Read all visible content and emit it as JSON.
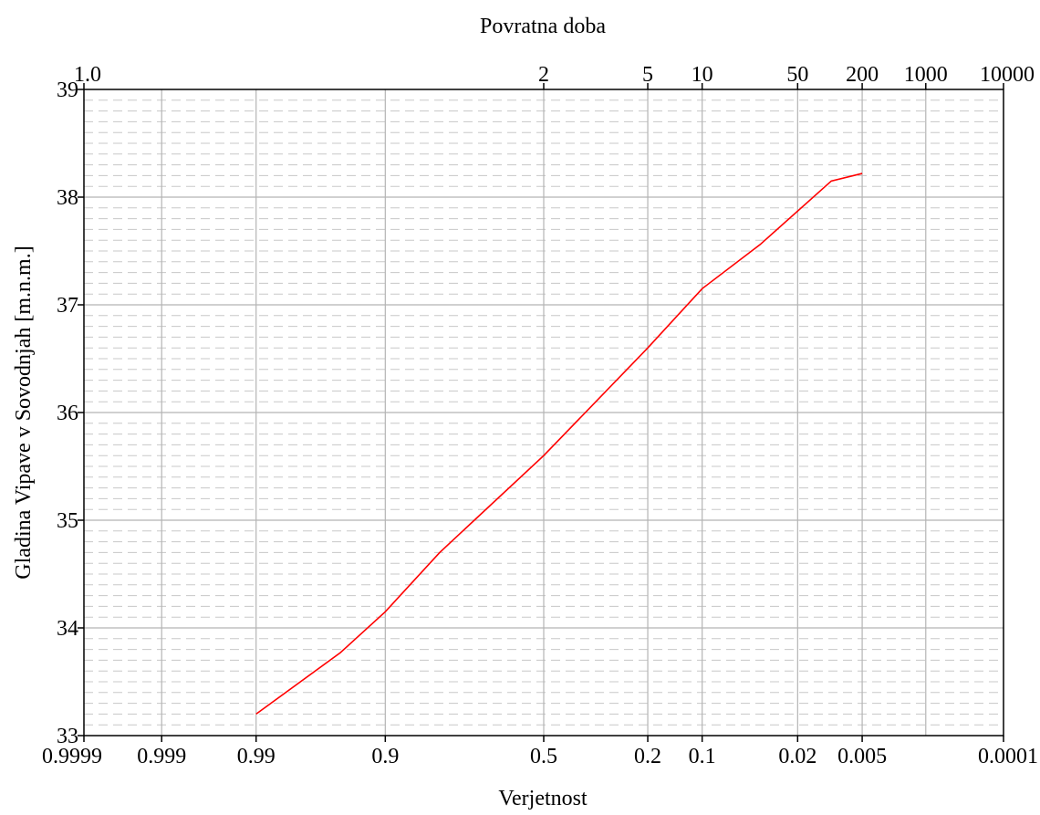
{
  "chart_data": {
    "type": "line",
    "title": "",
    "top_axis_label": "Povratna doba",
    "xlabel": "Verjetnost",
    "ylabel": "Gladina Vipave v Sovodnjah [m.n.m.]",
    "x_scale": "normal-probability (exceedance), reversed",
    "x_ticks": [
      0.9999,
      0.999,
      0.99,
      0.9,
      0.5,
      0.2,
      0.1,
      0.02,
      0.005,
      0.0001
    ],
    "x_tick_labels": [
      "0.9999",
      "0.999",
      "0.99",
      "0.9",
      "0.5",
      "0.2",
      "0.1",
      "0.02",
      "0.005",
      "0.0001"
    ],
    "top_ticks": [
      {
        "label": "1.0",
        "p": 0.9999
      },
      {
        "label": "2",
        "p": 0.5
      },
      {
        "label": "5",
        "p": 0.2
      },
      {
        "label": "10",
        "p": 0.1
      },
      {
        "label": "50",
        "p": 0.02
      },
      {
        "label": "200",
        "p": 0.005
      },
      {
        "label": "1000",
        "p": 0.001
      },
      {
        "label": "10000",
        "p": 0.0001
      }
    ],
    "ylim": [
      33,
      39
    ],
    "y_ticks": [
      33,
      34,
      35,
      36,
      37,
      38,
      39
    ],
    "y_tick_labels": [
      "33",
      "34",
      "35",
      "36",
      "37",
      "38",
      "39"
    ],
    "y_minor_step": 0.1,
    "grid": true,
    "colors": {
      "series": "#ff0000",
      "grid_major": "#b4b4b4",
      "grid_minor": "#c8c8c8",
      "axis": "#000000"
    },
    "series": [
      {
        "color": "#ff0000",
        "points": [
          {
            "p": 0.99,
            "y": 33.2
          },
          {
            "p": 0.95,
            "y": 33.77
          },
          {
            "p": 0.9,
            "y": 34.15
          },
          {
            "p": 0.8,
            "y": 34.7
          },
          {
            "p": 0.5,
            "y": 35.6
          },
          {
            "p": 0.2,
            "y": 36.6
          },
          {
            "p": 0.1,
            "y": 37.15
          },
          {
            "p": 0.04,
            "y": 37.56
          },
          {
            "p": 0.01,
            "y": 38.15
          },
          {
            "p": 0.005,
            "y": 38.22
          }
        ]
      }
    ]
  }
}
